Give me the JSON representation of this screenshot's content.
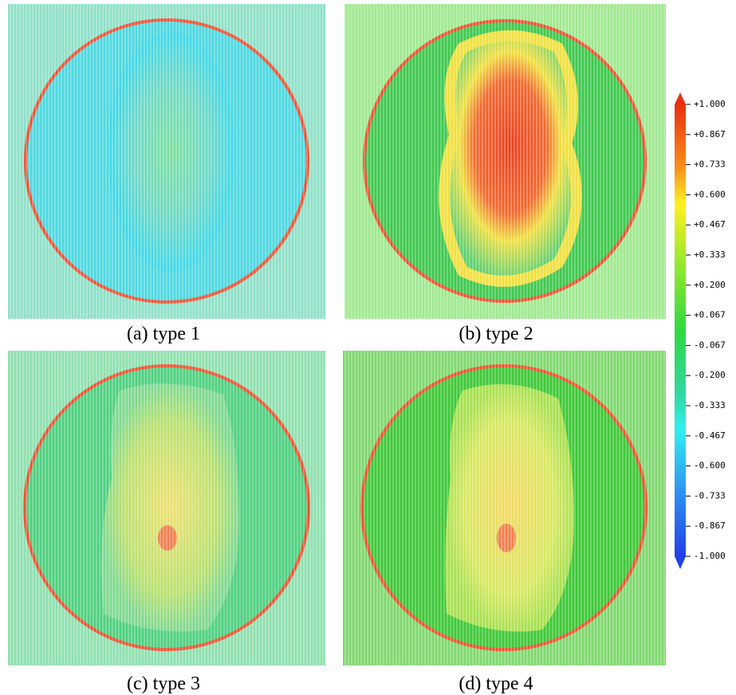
{
  "panels": [
    {
      "caption": "(a) type 1"
    },
    {
      "caption": "(b) type 2"
    },
    {
      "caption": "(c) type 3"
    },
    {
      "caption": "(d) type 4"
    }
  ],
  "colorbar": {
    "labels": [
      "+1.000",
      "+0.867",
      "+0.733",
      "+0.600",
      "+0.467",
      "+0.333",
      "+0.200",
      "+0.067",
      "-0.067",
      "-0.200",
      "-0.333",
      "-0.467",
      "-0.600",
      "-0.733",
      "-0.867",
      "-1.000"
    ]
  }
}
